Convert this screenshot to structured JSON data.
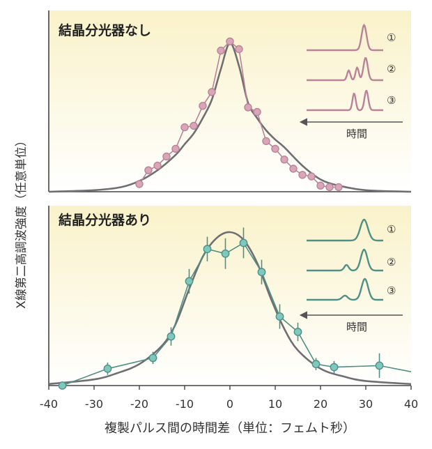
{
  "figure": {
    "ylabel": "X線第二高調波強度（任意単位）",
    "xlabel": "複製パルス間の時間差（単位：フェムト秒）"
  },
  "colors": {
    "top_series": "#d9a6b8",
    "top_stroke": "#b98299",
    "bottom_series": "#7fc8bd",
    "bottom_stroke": "#4f8f85",
    "fit_curve": "#6f6f73",
    "axis": "#444444",
    "panel_gradient_top": "#f9f2c9",
    "panel_gradient_bottom": "#ffffff"
  },
  "chart_data": [
    {
      "type": "scatter",
      "panel": "top",
      "title": "結晶分光器なし",
      "xlim": [
        -40,
        40
      ],
      "ylim": [
        0,
        1.0
      ],
      "grid": false,
      "series": [
        {
          "style": "line+markers",
          "x": [
            -20,
            -18,
            -16,
            -14,
            -12,
            -10,
            -8,
            -6,
            -4,
            -2,
            0,
            2,
            4,
            6,
            8,
            10,
            12,
            14,
            16,
            18,
            20,
            22,
            24
          ],
          "y": [
            0.05,
            0.14,
            0.17,
            0.23,
            0.28,
            0.42,
            0.43,
            0.56,
            0.65,
            0.92,
            0.98,
            0.93,
            0.55,
            0.52,
            0.33,
            0.28,
            0.21,
            0.15,
            0.11,
            0.1,
            0.04,
            0.03,
            0.03
          ]
        },
        {
          "style": "fit-curve",
          "x": [
            -40,
            -30,
            -24,
            -20,
            -16,
            -12,
            -10,
            -8,
            -6,
            -4,
            -2,
            0,
            2,
            4,
            6,
            8,
            10,
            12,
            16,
            20,
            24,
            30,
            40
          ],
          "y": [
            0.0,
            0.01,
            0.03,
            0.07,
            0.14,
            0.24,
            0.31,
            0.38,
            0.48,
            0.6,
            0.8,
            0.97,
            0.82,
            0.58,
            0.48,
            0.4,
            0.34,
            0.29,
            0.17,
            0.08,
            0.04,
            0.01,
            0.0
          ]
        }
      ],
      "inset": {
        "labels": [
          "①",
          "②",
          "③"
        ],
        "time_label": "時間"
      }
    },
    {
      "type": "scatter",
      "panel": "bottom",
      "title": "結晶分光器あり",
      "xlim": [
        -40,
        40
      ],
      "ylim": [
        0,
        1.0
      ],
      "grid": false,
      "xticks": [
        -40,
        -30,
        -20,
        -10,
        0,
        10,
        20,
        30,
        40
      ],
      "series": [
        {
          "style": "line+markers+errorbars",
          "x": [
            -37,
            -27,
            -17,
            -13,
            -9,
            -5,
            -1,
            3,
            7,
            11,
            15,
            19,
            23,
            33,
            40
          ],
          "y": [
            0.0,
            0.11,
            0.18,
            0.32,
            0.68,
            0.89,
            0.86,
            0.93,
            0.74,
            0.45,
            0.35,
            0.14,
            0.12,
            0.13,
            0.09
          ],
          "err": [
            0.0,
            0.04,
            0.04,
            0.06,
            0.08,
            0.08,
            0.1,
            0.1,
            0.08,
            0.08,
            0.06,
            0.04,
            0.04,
            0.08,
            0.0
          ]
        },
        {
          "style": "fit-curve",
          "x": [
            -40,
            -30,
            -25,
            -20,
            -15,
            -12,
            -9,
            -6,
            -3,
            0,
            3,
            6,
            9,
            12,
            15,
            20,
            25,
            30,
            40
          ],
          "y": [
            0.01,
            0.04,
            0.08,
            0.14,
            0.26,
            0.4,
            0.63,
            0.84,
            0.96,
            1.0,
            0.95,
            0.8,
            0.57,
            0.37,
            0.23,
            0.11,
            0.06,
            0.03,
            0.01
          ]
        }
      ],
      "inset": {
        "labels": [
          "①",
          "②",
          "③"
        ],
        "time_label": "時間"
      }
    }
  ]
}
